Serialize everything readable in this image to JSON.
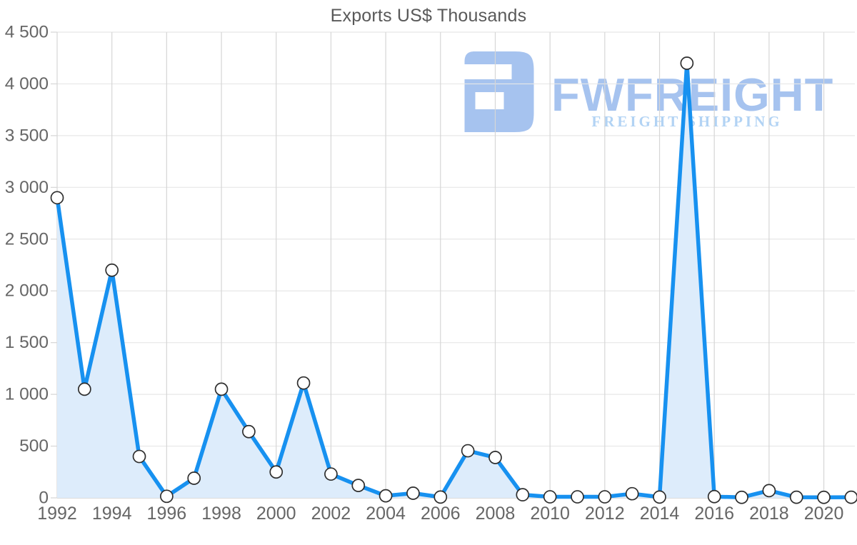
{
  "title": "Exports US$ Thousands",
  "watermark": {
    "brand": "FWFREIGHT",
    "tagline": "FREIGHT SHIPPING",
    "logo_color": "#a6c3ef",
    "brand_color": "#a6c3ef",
    "tagline_color": "#b2d3f4"
  },
  "colors": {
    "line": "#1791f0",
    "area_fill": "#ddecfb",
    "marker_fill": "#ffffff",
    "marker_stroke": "#2e2e2e",
    "grid_horizontal": "#e7e7e7",
    "grid_vertical": "#d6d6d6",
    "axis_line": "#cfcfcf",
    "axis_text": "#666666",
    "title_text": "#595959"
  },
  "chart_data": {
    "type": "area",
    "title": "Exports US$ Thousands",
    "x": [
      1992,
      1993,
      1994,
      1995,
      1996,
      1997,
      1998,
      1999,
      2000,
      2001,
      2002,
      2003,
      2004,
      2005,
      2006,
      2007,
      2008,
      2009,
      2010,
      2011,
      2012,
      2013,
      2014,
      2015,
      2016,
      2017,
      2018,
      2019,
      2020,
      2021
    ],
    "values": [
      2900,
      1050,
      2200,
      400,
      15,
      190,
      1050,
      640,
      250,
      1110,
      230,
      120,
      20,
      45,
      8,
      455,
      390,
      30,
      10,
      10,
      10,
      40,
      8,
      4200,
      12,
      5,
      70,
      6,
      5,
      6
    ],
    "x_tick_labels": [
      "1992",
      "1994",
      "1996",
      "1998",
      "2000",
      "2002",
      "2004",
      "2006",
      "2008",
      "2010",
      "2012",
      "2014",
      "2016",
      "2018",
      "2020"
    ],
    "x_tick_years": [
      1992,
      1994,
      1996,
      1998,
      2000,
      2002,
      2004,
      2006,
      2008,
      2010,
      2012,
      2014,
      2016,
      2018,
      2020
    ],
    "y_tick_values": [
      0,
      500,
      1000,
      1500,
      2000,
      2500,
      3000,
      3500,
      4000,
      4500
    ],
    "y_tick_labels": [
      "0",
      "500",
      "1 000",
      "1 500",
      "2 000",
      "2 500",
      "3 000",
      "3 500",
      "4 000",
      "4 500"
    ],
    "ylim": [
      0,
      4500
    ],
    "xlabel": "",
    "ylabel": "",
    "grid": true,
    "legend": false,
    "marker": "circle"
  }
}
